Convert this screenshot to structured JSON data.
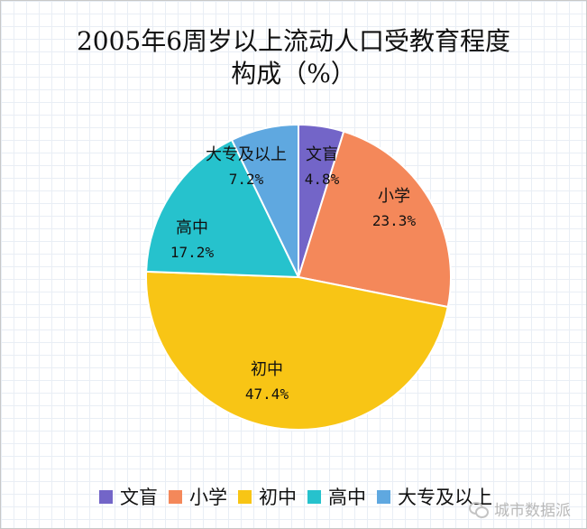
{
  "chart_data": {
    "type": "pie",
    "title_line1": "2005年6周岁以上流动人口受教育程度",
    "title_line2": "构成（%）",
    "categories": [
      "文盲",
      "小学",
      "初中",
      "高中",
      "大专及以上"
    ],
    "values": [
      4.8,
      23.3,
      47.4,
      17.2,
      7.2
    ],
    "value_labels": [
      "4.8%",
      "23.3%",
      "47.4%",
      "17.2%",
      "7.2%"
    ],
    "colors": [
      "#7365c8",
      "#f4885a",
      "#f8c515",
      "#26c2cd",
      "#5fa8e0"
    ],
    "legend_position": "bottom"
  },
  "watermark": {
    "text": "城市数据派",
    "icon": "wechat-icon"
  }
}
